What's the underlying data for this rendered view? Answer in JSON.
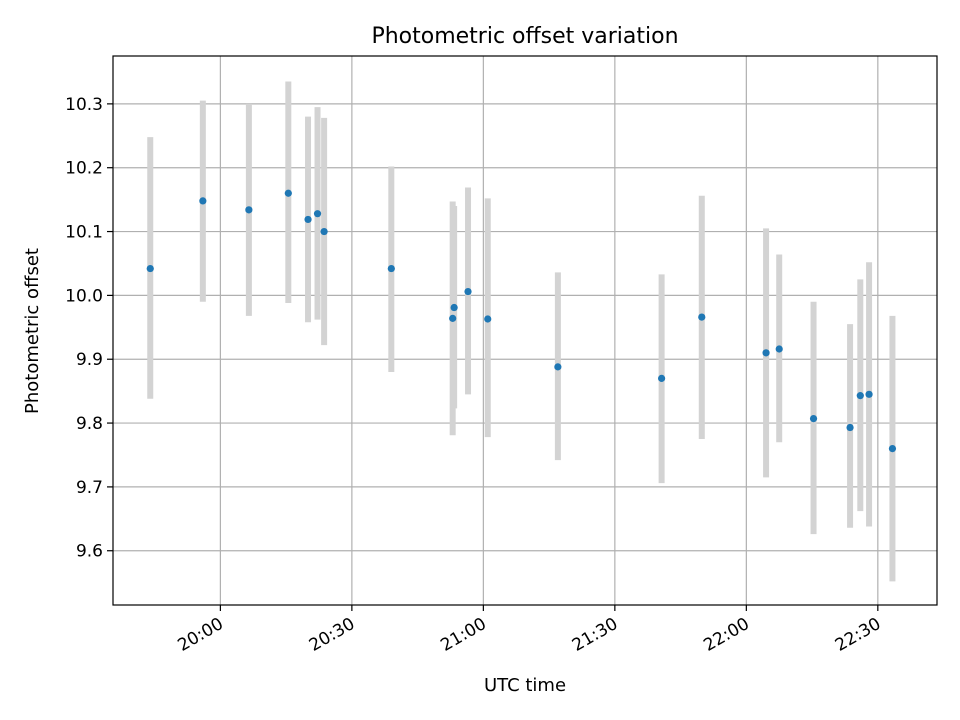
{
  "chart_data": {
    "type": "scatter",
    "title": "Photometric offset variation",
    "xlabel": "UTC time",
    "ylabel": "Photometric offset",
    "grid": true,
    "x_ticks": [
      "20:00",
      "20:30",
      "21:00",
      "21:30",
      "22:00",
      "22:30"
    ],
    "y_ticks": [
      "9.6",
      "9.7",
      "9.8",
      "9.9",
      "10.0",
      "10.1",
      "10.2",
      "10.3"
    ],
    "xlim": [
      "19:35:30",
      "22:43:30"
    ],
    "ylim": [
      9.515,
      10.375
    ],
    "colors": {
      "points": "#1f77b4",
      "error_bars": "#d3d3d3",
      "grid": "#b0b0b0"
    },
    "series": [
      {
        "points": [
          {
            "x": "19:44",
            "y": 10.042,
            "err_low": 9.838,
            "err_high": 10.248
          },
          {
            "x": "19:56",
            "y": 10.148,
            "err_low": 9.99,
            "err_high": 10.305
          },
          {
            "x": "20:06:30",
            "y": 10.134,
            "err_low": 9.968,
            "err_high": 10.3
          },
          {
            "x": "20:15:30",
            "y": 10.16,
            "err_low": 9.988,
            "err_high": 10.335
          },
          {
            "x": "20:20",
            "y": 10.119,
            "err_low": 9.958,
            "err_high": 10.28
          },
          {
            "x": "20:22:10",
            "y": 10.128,
            "err_low": 9.962,
            "err_high": 10.295
          },
          {
            "x": "20:23:40",
            "y": 10.1,
            "err_low": 9.922,
            "err_high": 10.278
          },
          {
            "x": "20:39",
            "y": 10.042,
            "err_low": 9.88,
            "err_high": 10.202
          },
          {
            "x": "20:53",
            "y": 9.964,
            "err_low": 9.781,
            "err_high": 10.147
          },
          {
            "x": "20:53:20",
            "y": 9.981,
            "err_low": 9.823,
            "err_high": 10.14
          },
          {
            "x": "20:56:30",
            "y": 10.006,
            "err_low": 9.845,
            "err_high": 10.169
          },
          {
            "x": "21:01",
            "y": 9.963,
            "err_low": 9.778,
            "err_high": 10.152
          },
          {
            "x": "21:17",
            "y": 9.888,
            "err_low": 9.742,
            "err_high": 10.036
          },
          {
            "x": "21:40:40",
            "y": 9.87,
            "err_low": 9.706,
            "err_high": 10.033
          },
          {
            "x": "21:49:50",
            "y": 9.966,
            "err_low": 9.775,
            "err_high": 10.156
          },
          {
            "x": "22:04:30",
            "y": 9.91,
            "err_low": 9.715,
            "err_high": 10.105
          },
          {
            "x": "22:07:30",
            "y": 9.916,
            "err_low": 9.77,
            "err_high": 10.064
          },
          {
            "x": "22:15:20",
            "y": 9.807,
            "err_low": 9.626,
            "err_high": 9.99
          },
          {
            "x": "22:23:40",
            "y": 9.793,
            "err_low": 9.636,
            "err_high": 9.955
          },
          {
            "x": "22:26",
            "y": 9.843,
            "err_low": 9.662,
            "err_high": 10.025
          },
          {
            "x": "22:28",
            "y": 9.845,
            "err_low": 9.638,
            "err_high": 10.052
          },
          {
            "x": "22:33:20",
            "y": 9.76,
            "err_low": 9.552,
            "err_high": 9.968
          }
        ]
      }
    ]
  }
}
